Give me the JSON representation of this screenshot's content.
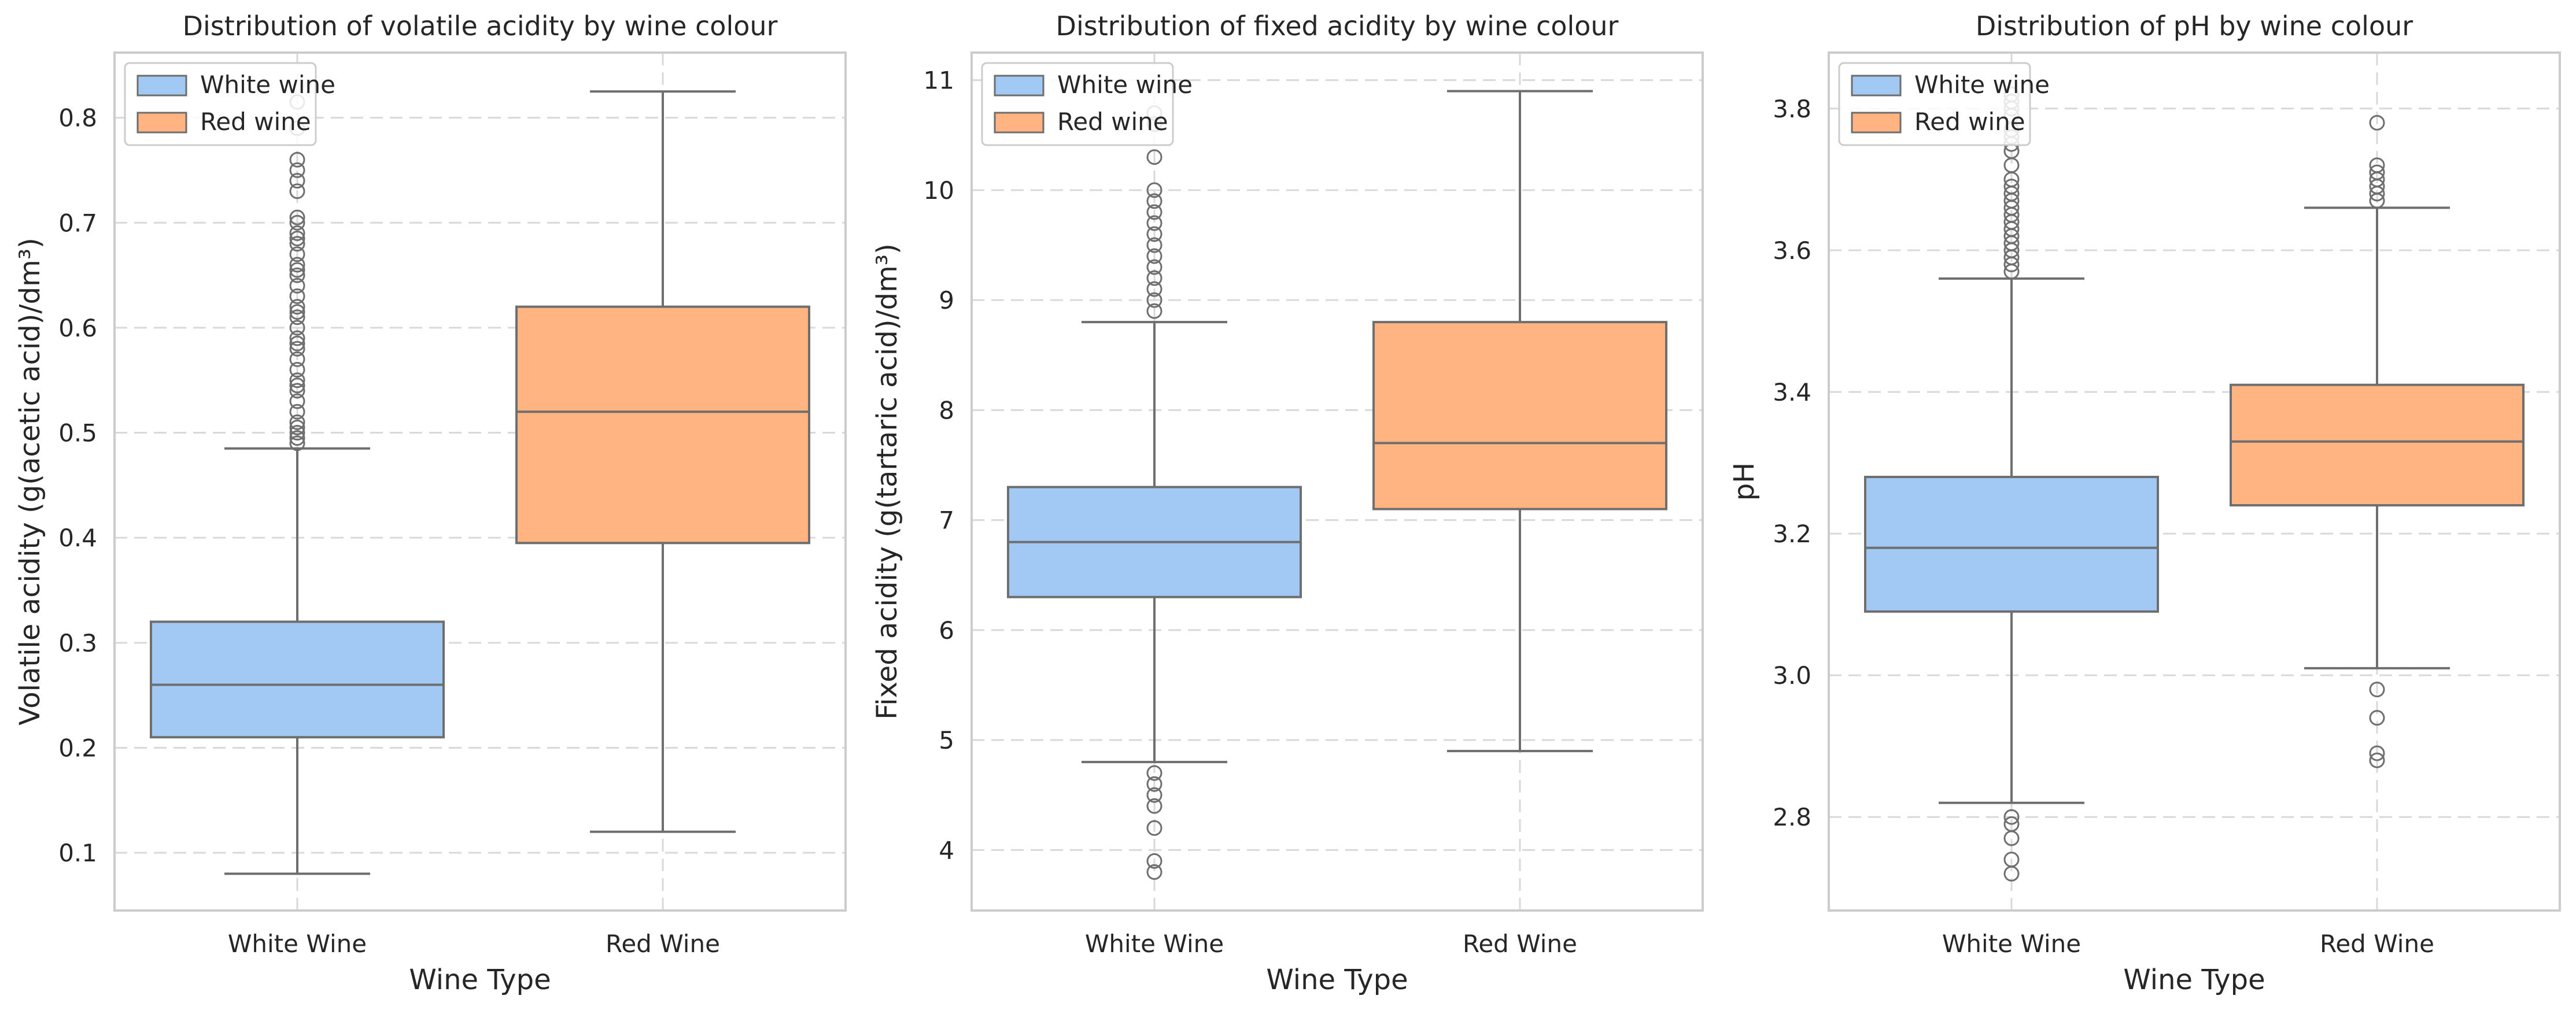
{
  "colors": {
    "white_wine": "#a1c9f4",
    "red_wine": "#ffb482",
    "box_edge": "#6e6e6e",
    "grid": "#d9d9d9",
    "frame": "#cccccc"
  },
  "chart_data": [
    {
      "type": "box",
      "title": "Distribution of volatile acidity by wine colour",
      "xlabel": "Wine Type",
      "ylabel": "Volatile acidity (g(acetic acid)/dm³)",
      "categories": [
        "White Wine",
        "Red Wine"
      ],
      "ylim": [
        0.045,
        0.862
      ],
      "yticks": [
        0.1,
        0.2,
        0.3,
        0.4,
        0.5,
        0.6,
        0.7,
        0.8
      ],
      "ytick_labels": [
        "0.1",
        "0.2",
        "0.3",
        "0.4",
        "0.5",
        "0.6",
        "0.7",
        "0.8"
      ],
      "grid": true,
      "legend": {
        "placement": "top-left",
        "entries": [
          "White wine",
          "Red wine"
        ]
      },
      "series": [
        {
          "name": "White wine",
          "whisker_low": 0.08,
          "q1": 0.21,
          "median": 0.26,
          "q3": 0.32,
          "whisker_high": 0.485,
          "outliers": [
            0.49,
            0.495,
            0.5,
            0.505,
            0.51,
            0.52,
            0.53,
            0.54,
            0.545,
            0.55,
            0.56,
            0.57,
            0.58,
            0.585,
            0.59,
            0.6,
            0.61,
            0.615,
            0.62,
            0.63,
            0.64,
            0.65,
            0.655,
            0.66,
            0.67,
            0.68,
            0.685,
            0.69,
            0.7,
            0.705,
            0.73,
            0.74,
            0.75,
            0.76,
            0.79,
            0.815
          ]
        },
        {
          "name": "Red wine",
          "whisker_low": 0.12,
          "q1": 0.395,
          "median": 0.52,
          "q3": 0.62,
          "whisker_high": 0.825,
          "outliers": []
        }
      ]
    },
    {
      "type": "box",
      "title": "Distribution of fixed acidity by wine colour",
      "xlabel": "Wine Type",
      "ylabel": "Fixed acidity (g(tartaric acid)/dm³)",
      "categories": [
        "White Wine",
        "Red Wine"
      ],
      "ylim": [
        3.45,
        11.25
      ],
      "yticks": [
        4,
        5,
        6,
        7,
        8,
        9,
        10,
        11
      ],
      "ytick_labels": [
        "4",
        "5",
        "6",
        "7",
        "8",
        "9",
        "10",
        "11"
      ],
      "grid": true,
      "legend": {
        "placement": "top-left",
        "entries": [
          "White wine",
          "Red wine"
        ]
      },
      "series": [
        {
          "name": "White wine",
          "whisker_low": 4.8,
          "q1": 6.3,
          "median": 6.8,
          "q3": 7.3,
          "whisker_high": 8.8,
          "outliers": [
            3.8,
            3.9,
            4.2,
            4.4,
            4.5,
            4.6,
            4.7,
            8.9,
            9.0,
            9.1,
            9.2,
            9.3,
            9.4,
            9.5,
            9.6,
            9.7,
            9.8,
            9.9,
            10.0,
            10.3,
            10.6,
            10.7
          ]
        },
        {
          "name": "Red wine",
          "whisker_low": 4.9,
          "q1": 7.1,
          "median": 7.7,
          "q3": 8.8,
          "whisker_high": 10.9,
          "outliers": []
        }
      ]
    },
    {
      "type": "box",
      "title": "Distribution of pH by wine colour",
      "xlabel": "Wine Type",
      "ylabel": "pH",
      "categories": [
        "White Wine",
        "Red Wine"
      ],
      "ylim": [
        2.668,
        3.879
      ],
      "yticks": [
        2.8,
        3.0,
        3.2,
        3.4,
        3.6,
        3.8
      ],
      "ytick_labels": [
        "2.8",
        "3.0",
        "3.2",
        "3.4",
        "3.6",
        "3.8"
      ],
      "grid": true,
      "legend": {
        "placement": "top-left",
        "entries": [
          "White wine",
          "Red wine"
        ]
      },
      "series": [
        {
          "name": "White wine",
          "whisker_low": 2.82,
          "q1": 3.09,
          "median": 3.18,
          "q3": 3.28,
          "whisker_high": 3.56,
          "outliers": [
            2.72,
            2.74,
            2.77,
            2.79,
            2.8,
            3.57,
            3.58,
            3.59,
            3.6,
            3.61,
            3.62,
            3.63,
            3.64,
            3.65,
            3.66,
            3.67,
            3.68,
            3.69,
            3.7,
            3.72,
            3.74,
            3.75,
            3.76,
            3.77,
            3.79,
            3.8,
            3.81,
            3.82
          ]
        },
        {
          "name": "Red wine",
          "whisker_low": 3.01,
          "q1": 3.24,
          "median": 3.33,
          "q3": 3.41,
          "whisker_high": 3.66,
          "outliers": [
            2.88,
            2.89,
            2.94,
            2.98,
            3.67,
            3.68,
            3.69,
            3.7,
            3.71,
            3.72,
            3.78
          ]
        }
      ]
    }
  ]
}
